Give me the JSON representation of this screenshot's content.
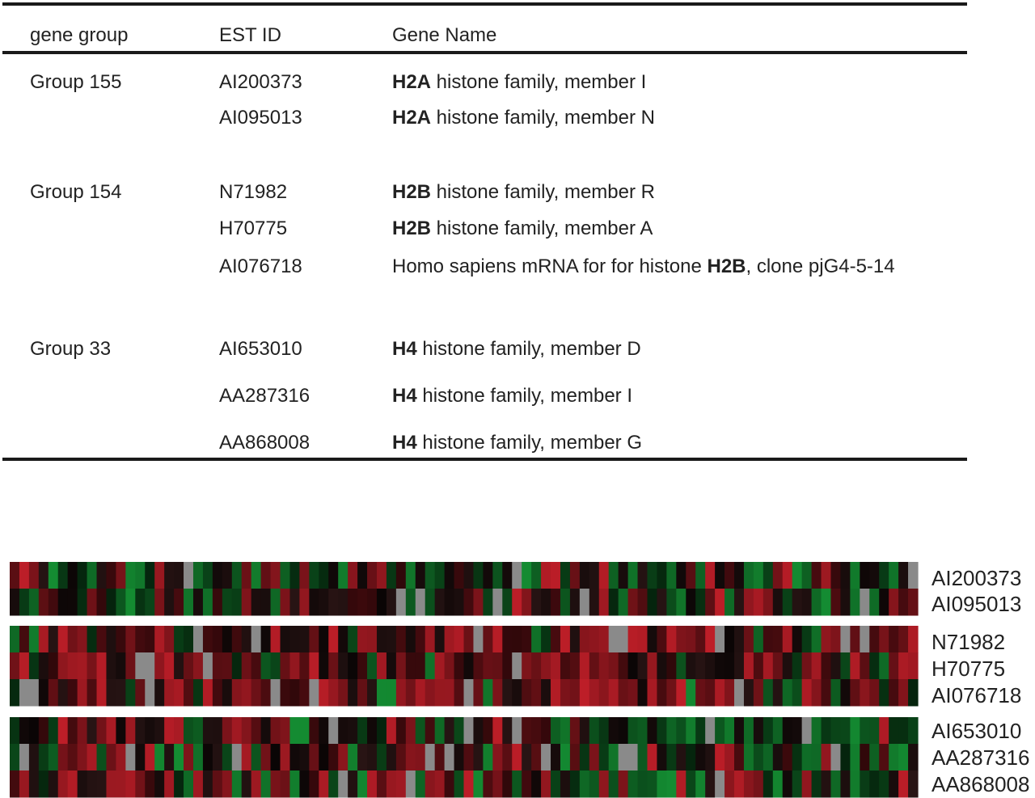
{
  "table": {
    "header": [
      "gene group",
      "EST ID",
      "Gene Name"
    ],
    "groups": [
      {
        "group": "Group 155",
        "rows": [
          {
            "est_id": "AI200373",
            "gene_name": [
              {
                "text": "H2A",
                "bold": true
              },
              {
                "text": " histone family, member I",
                "bold": false
              }
            ]
          },
          {
            "est_id": "AI095013",
            "gene_name": [
              {
                "text": "H2A",
                "bold": true
              },
              {
                "text": " histone family, member N",
                "bold": false
              }
            ]
          }
        ]
      },
      {
        "group": "Group 154",
        "rows": [
          {
            "est_id": "N71982",
            "gene_name": [
              {
                "text": "H2B",
                "bold": true
              },
              {
                "text": " histone family, member R",
                "bold": false
              }
            ]
          },
          {
            "est_id": "H70775",
            "gene_name": [
              {
                "text": "H2B",
                "bold": true
              },
              {
                "text": " histone family, member A",
                "bold": false
              }
            ]
          },
          {
            "est_id": "AI076718",
            "gene_name": [
              {
                "text": "Homo sapiens mRNA for for histone ",
                "bold": false
              },
              {
                "text": "H2B",
                "bold": true
              },
              {
                "text": ", clone pjG4-5-14",
                "bold": false
              }
            ]
          }
        ]
      },
      {
        "group": "Group 33",
        "rows": [
          {
            "est_id": "AI653010",
            "gene_name": [
              {
                "text": "H4",
                "bold": true
              },
              {
                "text": " histone family, member D",
                "bold": false
              }
            ]
          },
          {
            "est_id": "AA287316",
            "gene_name": [
              {
                "text": "H4",
                "bold": true
              },
              {
                "text": " histone family, member I",
                "bold": false
              }
            ]
          },
          {
            "est_id": "AA868008",
            "gene_name": [
              {
                "text": "H4",
                "bold": true
              },
              {
                "text": " histone family, member G",
                "bold": false
              }
            ]
          }
        ]
      }
    ]
  },
  "heatmap": {
    "panels": [
      [
        "AI200373",
        "AI095013"
      ],
      [
        "N71982",
        "H70775",
        "AI076718"
      ],
      [
        "AI653010",
        "AA287316",
        "AA868008"
      ]
    ]
  }
}
